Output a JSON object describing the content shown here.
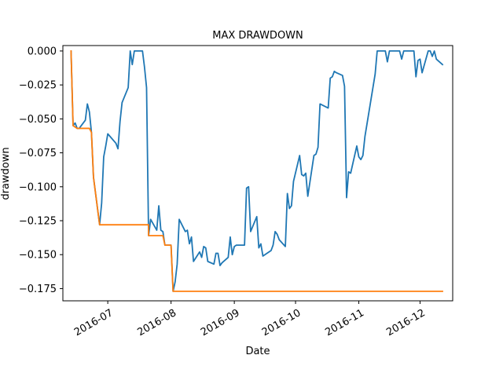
{
  "chart_data": {
    "type": "line",
    "title": "MAX DRAWDOWN",
    "xlabel": "Date",
    "ylabel": "drawdown",
    "grid": false,
    "legend": "none",
    "xlim": [
      "2016-06-09",
      "2016-12-17"
    ],
    "ylim": [
      -0.184,
      0.004
    ],
    "x_ticks": [
      {
        "date": "2016-07-01",
        "label": "2016-07"
      },
      {
        "date": "2016-08-01",
        "label": "2016-08"
      },
      {
        "date": "2016-09-01",
        "label": "2016-09"
      },
      {
        "date": "2016-10-01",
        "label": "2016-10"
      },
      {
        "date": "2016-11-01",
        "label": "2016-11"
      },
      {
        "date": "2016-12-01",
        "label": "2016-12"
      }
    ],
    "y_ticks": [
      0.0,
      -0.025,
      -0.05,
      -0.075,
      -0.1,
      -0.125,
      -0.15,
      -0.175
    ],
    "y_tick_labels": [
      "0.000",
      "−0.025",
      "−0.050",
      "−0.075",
      "−0.100",
      "−0.125",
      "−0.150",
      "−0.175"
    ],
    "series": [
      {
        "color": "#1f77b4",
        "points": [
          [
            "2016-06-13",
            0.0
          ],
          [
            "2016-06-14",
            -0.055
          ],
          [
            "2016-06-15",
            -0.053
          ],
          [
            "2016-06-16",
            -0.057
          ],
          [
            "2016-06-17",
            -0.057
          ],
          [
            "2016-06-20",
            -0.051
          ],
          [
            "2016-06-21",
            -0.039
          ],
          [
            "2016-06-22",
            -0.045
          ],
          [
            "2016-06-23",
            -0.06
          ],
          [
            "2016-06-24",
            -0.093
          ],
          [
            "2016-06-27",
            -0.128
          ],
          [
            "2016-06-28",
            -0.112
          ],
          [
            "2016-06-29",
            -0.078
          ],
          [
            "2016-06-30",
            -0.07
          ],
          [
            "2016-07-01",
            -0.061
          ],
          [
            "2016-07-05",
            -0.068
          ],
          [
            "2016-07-06",
            -0.072
          ],
          [
            "2016-07-07",
            -0.052
          ],
          [
            "2016-07-08",
            -0.038
          ],
          [
            "2016-07-11",
            -0.027
          ],
          [
            "2016-07-12",
            0.0
          ],
          [
            "2016-07-13",
            -0.01
          ],
          [
            "2016-07-14",
            0.0
          ],
          [
            "2016-07-18",
            0.0
          ],
          [
            "2016-07-19",
            -0.012
          ],
          [
            "2016-07-20",
            -0.027
          ],
          [
            "2016-07-21",
            -0.136
          ],
          [
            "2016-07-22",
            -0.124
          ],
          [
            "2016-07-25",
            -0.132
          ],
          [
            "2016-07-26",
            -0.114
          ],
          [
            "2016-07-27",
            -0.132
          ],
          [
            "2016-07-28",
            -0.133
          ],
          [
            "2016-07-29",
            -0.143
          ],
          [
            "2016-08-01",
            -0.143
          ],
          [
            "2016-08-02",
            -0.177
          ],
          [
            "2016-08-03",
            -0.17
          ],
          [
            "2016-08-04",
            -0.157
          ],
          [
            "2016-08-05",
            -0.124
          ],
          [
            "2016-08-08",
            -0.133
          ],
          [
            "2016-08-09",
            -0.132
          ],
          [
            "2016-08-10",
            -0.142
          ],
          [
            "2016-08-11",
            -0.137
          ],
          [
            "2016-08-12",
            -0.155
          ],
          [
            "2016-08-15",
            -0.148
          ],
          [
            "2016-08-16",
            -0.152
          ],
          [
            "2016-08-17",
            -0.144
          ],
          [
            "2016-08-18",
            -0.145
          ],
          [
            "2016-08-19",
            -0.155
          ],
          [
            "2016-08-22",
            -0.157
          ],
          [
            "2016-08-23",
            -0.149
          ],
          [
            "2016-08-24",
            -0.149
          ],
          [
            "2016-08-25",
            -0.158
          ],
          [
            "2016-08-26",
            -0.156
          ],
          [
            "2016-08-29",
            -0.152
          ],
          [
            "2016-08-30",
            -0.137
          ],
          [
            "2016-08-31",
            -0.15
          ],
          [
            "2016-09-01",
            -0.144
          ],
          [
            "2016-09-02",
            -0.143
          ],
          [
            "2016-09-06",
            -0.143
          ],
          [
            "2016-09-07",
            -0.101
          ],
          [
            "2016-09-08",
            -0.1
          ],
          [
            "2016-09-09",
            -0.133
          ],
          [
            "2016-09-12",
            -0.122
          ],
          [
            "2016-09-13",
            -0.145
          ],
          [
            "2016-09-14",
            -0.142
          ],
          [
            "2016-09-15",
            -0.151
          ],
          [
            "2016-09-16",
            -0.15
          ],
          [
            "2016-09-19",
            -0.147
          ],
          [
            "2016-09-20",
            -0.143
          ],
          [
            "2016-09-21",
            -0.133
          ],
          [
            "2016-09-22",
            -0.135
          ],
          [
            "2016-09-23",
            -0.139
          ],
          [
            "2016-09-26",
            -0.144
          ],
          [
            "2016-09-27",
            -0.105
          ],
          [
            "2016-09-28",
            -0.116
          ],
          [
            "2016-09-29",
            -0.114
          ],
          [
            "2016-09-30",
            -0.096
          ],
          [
            "2016-10-03",
            -0.077
          ],
          [
            "2016-10-04",
            -0.091
          ],
          [
            "2016-10-05",
            -0.092
          ],
          [
            "2016-10-06",
            -0.09
          ],
          [
            "2016-10-07",
            -0.107
          ],
          [
            "2016-10-10",
            -0.077
          ],
          [
            "2016-10-11",
            -0.076
          ],
          [
            "2016-10-12",
            -0.071
          ],
          [
            "2016-10-13",
            -0.039
          ],
          [
            "2016-10-17",
            -0.042
          ],
          [
            "2016-10-18",
            -0.02
          ],
          [
            "2016-10-19",
            -0.019
          ],
          [
            "2016-10-20",
            -0.015
          ],
          [
            "2016-10-21",
            -0.016
          ],
          [
            "2016-10-24",
            -0.018
          ],
          [
            "2016-10-25",
            -0.026
          ],
          [
            "2016-10-26",
            -0.108
          ],
          [
            "2016-10-27",
            -0.089
          ],
          [
            "2016-10-28",
            -0.09
          ],
          [
            "2016-10-31",
            -0.07
          ],
          [
            "2016-11-01",
            -0.078
          ],
          [
            "2016-11-02",
            -0.08
          ],
          [
            "2016-11-03",
            -0.077
          ],
          [
            "2016-11-04",
            -0.063
          ],
          [
            "2016-11-09",
            -0.017
          ],
          [
            "2016-11-10",
            0.0
          ],
          [
            "2016-11-11",
            0.0
          ],
          [
            "2016-11-14",
            0.0
          ],
          [
            "2016-11-15",
            -0.008
          ],
          [
            "2016-11-16",
            0.0
          ],
          [
            "2016-11-17",
            0.0
          ],
          [
            "2016-11-18",
            0.0
          ],
          [
            "2016-11-21",
            0.0
          ],
          [
            "2016-11-22",
            -0.006
          ],
          [
            "2016-11-23",
            0.0
          ],
          [
            "2016-11-25",
            0.0
          ],
          [
            "2016-11-28",
            0.0
          ],
          [
            "2016-11-29",
            -0.019
          ],
          [
            "2016-11-30",
            -0.007
          ],
          [
            "2016-12-01",
            -0.006
          ],
          [
            "2016-12-02",
            -0.016
          ],
          [
            "2016-12-05",
            0.0
          ],
          [
            "2016-12-06",
            0.0
          ],
          [
            "2016-12-07",
            -0.004
          ],
          [
            "2016-12-08",
            0.0
          ],
          [
            "2016-12-09",
            -0.006
          ],
          [
            "2016-12-12",
            -0.01
          ]
        ]
      },
      {
        "color": "#ff7f0e",
        "points": [
          [
            "2016-06-13",
            0.0
          ],
          [
            "2016-06-14",
            -0.055
          ],
          [
            "2016-06-16",
            -0.057
          ],
          [
            "2016-06-22",
            -0.057
          ],
          [
            "2016-06-23",
            -0.06
          ],
          [
            "2016-06-24",
            -0.093
          ],
          [
            "2016-06-27",
            -0.128
          ],
          [
            "2016-07-21",
            -0.128
          ],
          [
            "2016-07-21",
            -0.136
          ],
          [
            "2016-07-28",
            -0.136
          ],
          [
            "2016-07-29",
            -0.143
          ],
          [
            "2016-08-01",
            -0.143
          ],
          [
            "2016-08-02",
            -0.177
          ],
          [
            "2016-12-12",
            -0.177
          ]
        ]
      }
    ]
  }
}
